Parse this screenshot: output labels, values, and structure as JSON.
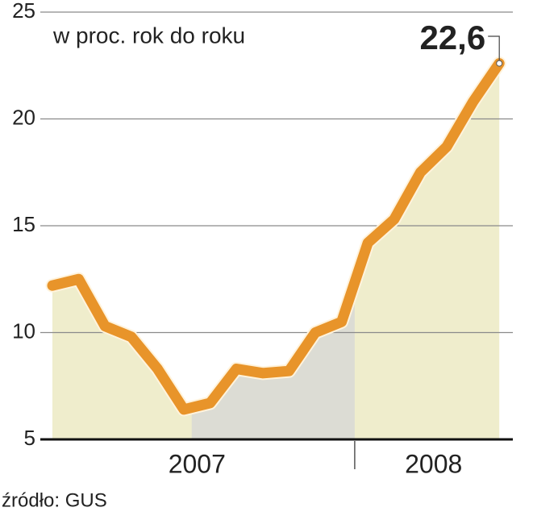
{
  "chart_data": {
    "type": "line",
    "subtitle": "w proc. rok do roku",
    "source": "źródło: GUS",
    "categories": [
      null,
      null,
      null,
      null,
      null,
      null,
      null,
      null,
      null,
      null,
      null,
      null,
      null,
      null,
      null,
      null,
      null,
      null
    ],
    "groups": [
      {
        "label": "2007",
        "size": 12
      },
      {
        "label": "2008",
        "size": 6
      }
    ],
    "series": [
      {
        "color": "#e8942a",
        "fill": "#efedcc",
        "values": [
          12.2,
          12.5,
          10.3,
          9.8,
          8.3,
          6.4,
          6.7,
          8.3,
          8.1,
          8.2,
          10.0,
          10.5,
          14.2,
          15.3,
          17.5,
          18.7,
          20.8,
          22.6
        ],
        "value_labels": [
          null,
          null,
          null,
          null,
          null,
          null,
          null,
          null,
          null,
          null,
          null,
          null,
          null,
          null,
          null,
          null,
          null,
          "22,6"
        ]
      }
    ],
    "highlight": {
      "start": 5,
      "end": 11,
      "color": "#dcdcd4"
    },
    "ylim": [
      5,
      25
    ],
    "yticks": [
      5,
      10,
      15,
      20,
      25
    ],
    "grid": true
  }
}
